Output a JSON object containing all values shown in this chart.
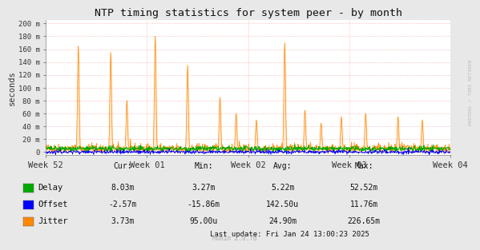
{
  "title": "NTP timing statistics for system peer - by month",
  "ylabel": "seconds",
  "bg_color": "#e8e8e8",
  "plot_bg_color": "#ffffff",
  "grid_color": "#ffaaaa",
  "x_labels": [
    "Week 52",
    "Week 01",
    "Week 02",
    "Week 03",
    "Week 04"
  ],
  "y_ticks": [
    0,
    20,
    40,
    60,
    80,
    100,
    120,
    140,
    160,
    180,
    200
  ],
  "y_labels": [
    "0",
    "20 m",
    "40 m",
    "60 m",
    "80 m",
    "100 m",
    "120 m",
    "140 m",
    "160 m",
    "180 m",
    "200 m"
  ],
  "ylim": [
    -5,
    205
  ],
  "delay_color": "#00aa00",
  "offset_color": "#0000ff",
  "jitter_color": "#ff8800",
  "stats": {
    "headers": [
      "Cur:",
      "Min:",
      "Avg:",
      "Max:"
    ],
    "rows": [
      {
        "label": "Delay",
        "color": "#00aa00",
        "values": [
          "8.03m",
          "3.27m",
          "5.22m",
          "52.52m"
        ]
      },
      {
        "label": "Offset",
        "color": "#0000ff",
        "values": [
          "-2.57m",
          "-15.86m",
          "142.50u",
          "11.76m"
        ]
      },
      {
        "label": "Jitter",
        "color": "#ff8800",
        "values": [
          "3.73m",
          "95.00u",
          "24.90m",
          "226.65m"
        ]
      }
    ]
  },
  "last_update": "Last update: Fri Jan 24 13:00:23 2025",
  "munin_version": "Munin 2.0.76",
  "rrdtool_label": "RRDTOOL / TOBI OETIKER",
  "n_points": 1000,
  "seed": 42
}
